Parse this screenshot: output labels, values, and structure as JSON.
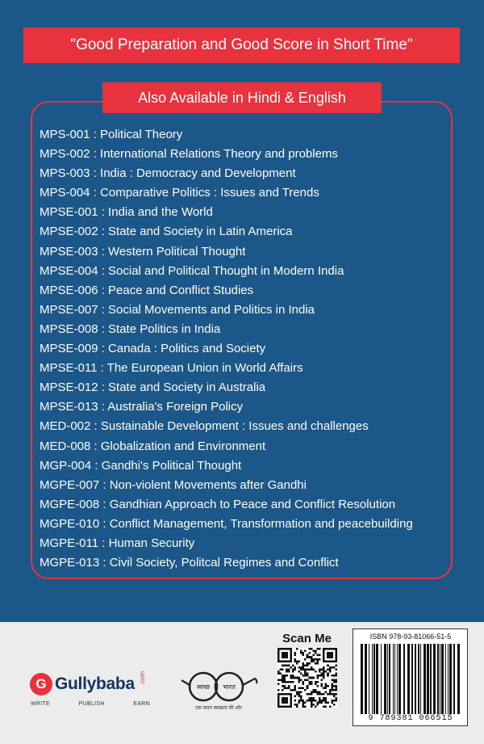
{
  "headline": "\"Good Preparation and Good Score in Short Time\"",
  "availability_banner": "Also Available in Hindi & English",
  "courses": [
    "MPS-001 : Political Theory",
    "MPS-002 : International Relations Theory and problems",
    "MPS-003 : India : Democracy and Development",
    "MPS-004 : Comparative Politics : Issues and Trends",
    "MPSE-001 : India and the World",
    "MPSE-002 : State and Society in Latin America",
    "MPSE-003 : Western Political Thought",
    "MPSE-004 : Social and Political Thought in Modern India",
    "MPSE-006 : Peace and Conflict Studies",
    "MPSE-007 : Social Movements and Politics in India",
    "MPSE-008 : State Politics in India",
    "MPSE-009 : Canada : Politics and Society",
    "MPSE-011 : The European Union in World Affairs",
    "MPSE-012 : State and Society in Australia",
    "MPSE-013 : Australia's Foreign Policy",
    "MED-002 : Sustainable Development : Issues and challenges",
    "MED-008 : Globalization and Environment",
    "MGP-004 : Gandhi's Political Thought",
    "MGPE-007 : Non-violent Movements after Gandhi",
    "MGPE-008 : Gandhian Approach to Peace and Conflict Resolution",
    "MGPE-010 : Conflict Management, Transformation and peacebuilding",
    "MGPE-011 : Human Security",
    "MGPE-013 : Civil Society, Politcal Regimes and Conflict"
  ],
  "footer": {
    "logo_letter": "G",
    "logo_text": "Gullybaba",
    "logo_suffix": ".com",
    "tagline": [
      "WRITE",
      "PUBLISH",
      "EARN"
    ],
    "swachh_left": "स्वच्छ",
    "swachh_right": "भारत",
    "swachh_caption": "एक कदम स्वच्छता की ओर",
    "scan_label": "Scan Me",
    "isbn": "ISBN 978-93-81066-51-5",
    "barcode_digits": "9 789381 066515"
  },
  "colors": {
    "background": "#1c5789",
    "accent": "#e8323e",
    "footer": "#ececec",
    "logo_text": "#16345a"
  }
}
